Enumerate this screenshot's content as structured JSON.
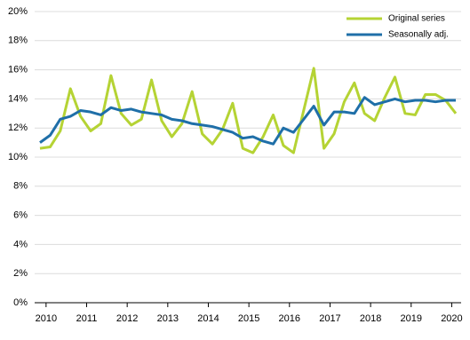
{
  "chart_data": {
    "type": "line",
    "categories": [
      "2010",
      null,
      null,
      null,
      "2011",
      null,
      null,
      null,
      "2012",
      null,
      null,
      null,
      "2013",
      null,
      null,
      null,
      "2014",
      null,
      null,
      null,
      "2015",
      null,
      null,
      null,
      "2016",
      null,
      null,
      null,
      "2017",
      null,
      null,
      null,
      "2018",
      null,
      null,
      null,
      "2019",
      null,
      null,
      null,
      "2020",
      null
    ],
    "series": [
      {
        "name": "Original series",
        "color": "#b5d334",
        "values": [
          10.6,
          10.7,
          11.8,
          14.7,
          12.8,
          11.8,
          12.3,
          15.6,
          13.0,
          12.2,
          12.6,
          15.3,
          12.5,
          11.4,
          12.3,
          14.5,
          11.6,
          10.9,
          11.9,
          13.7,
          10.6,
          10.3,
          11.4,
          12.9,
          10.8,
          10.3,
          13.2,
          16.1,
          10.6,
          11.6,
          13.8,
          15.1,
          13.0,
          12.5,
          14.1,
          15.5,
          13.0,
          12.9,
          14.3,
          14.3,
          13.9,
          13.0
        ]
      },
      {
        "name": "Seasonally adj.",
        "color": "#1f6fa8",
        "values": [
          11.0,
          11.5,
          12.6,
          12.8,
          13.2,
          13.1,
          12.9,
          13.4,
          13.2,
          13.3,
          13.1,
          13.0,
          12.9,
          12.6,
          12.5,
          12.3,
          12.2,
          12.1,
          11.9,
          11.7,
          11.3,
          11.4,
          11.1,
          10.9,
          12.0,
          11.7,
          12.6,
          13.5,
          12.2,
          13.1,
          13.1,
          13.0,
          14.1,
          13.6,
          13.8,
          14.0,
          13.8,
          13.9,
          13.9,
          13.8,
          13.9,
          13.9
        ]
      }
    ],
    "ylim": [
      0,
      20
    ],
    "yticks": [
      {
        "value": 0,
        "label": "0%"
      },
      {
        "value": 2,
        "label": "2%"
      },
      {
        "value": 4,
        "label": "4%"
      },
      {
        "value": 6,
        "label": "6%"
      },
      {
        "value": 8,
        "label": "8%"
      },
      {
        "value": 10,
        "label": "10%"
      },
      {
        "value": 12,
        "label": "12%"
      },
      {
        "value": 14,
        "label": "14%"
      },
      {
        "value": 16,
        "label": "16%"
      },
      {
        "value": 18,
        "label": "18%"
      },
      {
        "value": 20,
        "label": "20%"
      }
    ],
    "grid": true,
    "legend": "top-right"
  }
}
